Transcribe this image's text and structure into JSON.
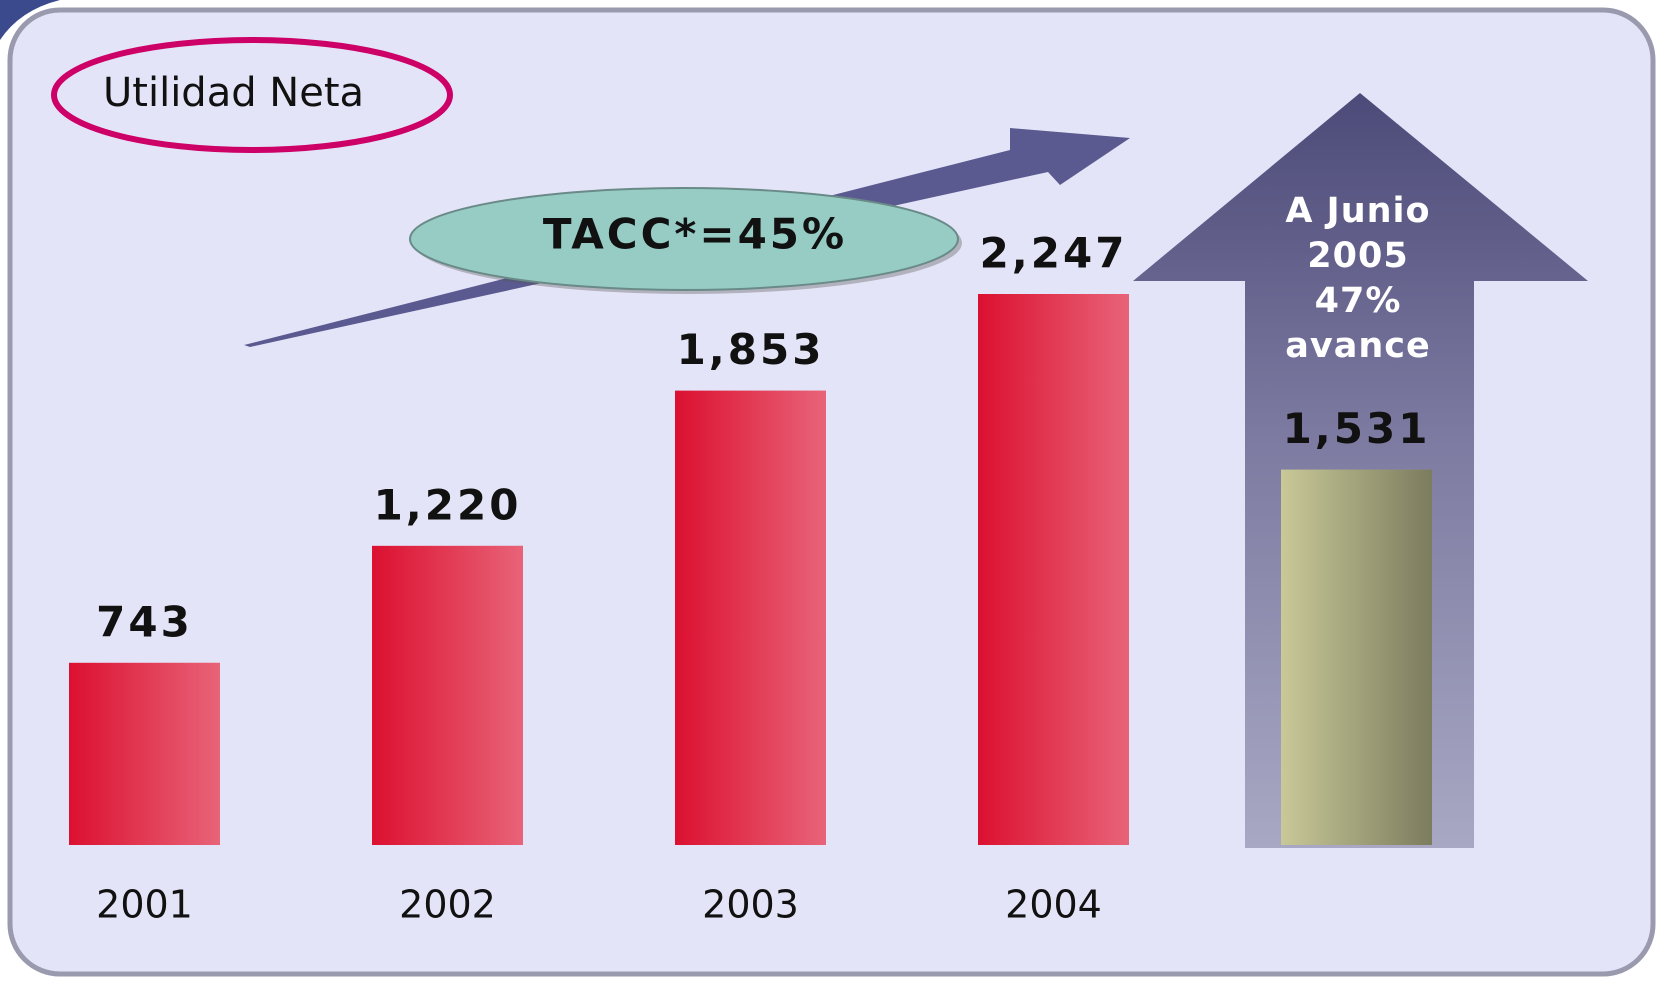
{
  "chart_data": {
    "type": "bar",
    "title": "Utilidad Neta",
    "categories": [
      "2001",
      "2002",
      "2003",
      "2004",
      null
    ],
    "values": [
      743,
      1220,
      1853,
      2247,
      1531
    ],
    "value_labels": [
      "743",
      "1,220",
      "1,853",
      "2,247",
      "1,531"
    ],
    "colors": [
      "#dc1030",
      "#dc1030",
      "#dc1030",
      "#dc1030",
      "#c8c898"
    ],
    "annotations": [
      "TACC*=45%",
      [
        "A Junio",
        "2005",
        "47%",
        "avance"
      ]
    ]
  }
}
